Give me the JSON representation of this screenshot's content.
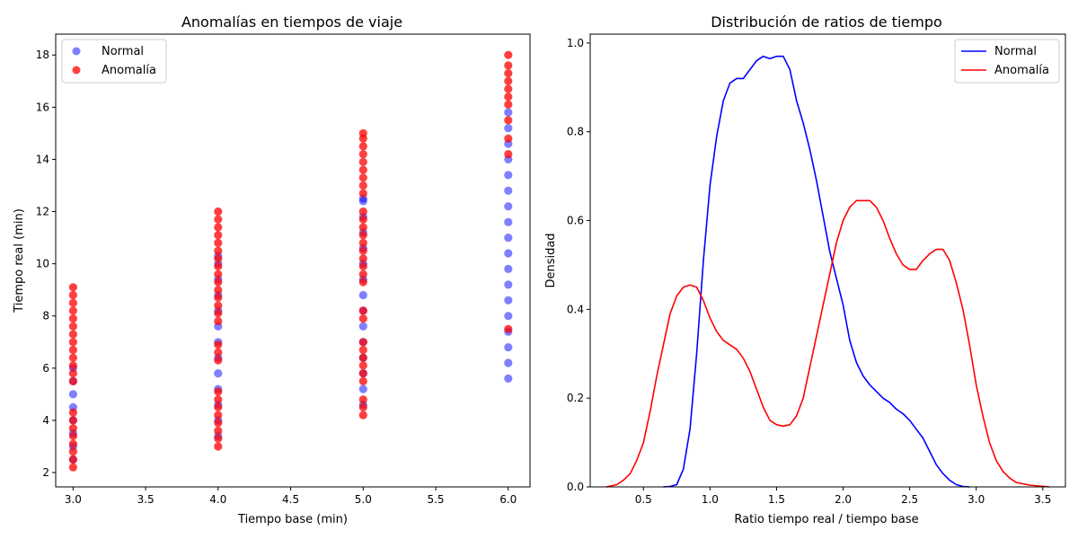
{
  "chart_data": [
    {
      "type": "scatter",
      "title": "Anomalías en tiempos de viaje",
      "xlabel": "Tiempo base (min)",
      "ylabel": "Tiempo real (min)",
      "xlim": [
        2.88,
        6.15
      ],
      "ylim": [
        1.45,
        18.8
      ],
      "xticks": [
        "3.0",
        "3.5",
        "4.0",
        "4.5",
        "5.0",
        "5.5",
        "6.0"
      ],
      "yticks": [
        "2",
        "4",
        "6",
        "8",
        "10",
        "12",
        "14",
        "16",
        "18"
      ],
      "grid": false,
      "legend_position": "top-left",
      "series": [
        {
          "name": "Normal",
          "color": "#0000ff",
          "alpha": 0.5,
          "points": [
            [
              3,
              2.5
            ],
            [
              3,
              3.0
            ],
            [
              3,
              3.5
            ],
            [
              3,
              4.0
            ],
            [
              3,
              4.5
            ],
            [
              3,
              5.0
            ],
            [
              3,
              5.5
            ],
            [
              3,
              6.0
            ],
            [
              4,
              3.4
            ],
            [
              4,
              4.0
            ],
            [
              4,
              4.6
            ],
            [
              4,
              5.2
            ],
            [
              4,
              5.8
            ],
            [
              4,
              6.4
            ],
            [
              4,
              7.0
            ],
            [
              4,
              7.6
            ],
            [
              4,
              8.2
            ],
            [
              4,
              8.8
            ],
            [
              4,
              9.4
            ],
            [
              4,
              10.0
            ],
            [
              4,
              10.3
            ],
            [
              5,
              4.6
            ],
            [
              5,
              5.2
            ],
            [
              5,
              5.8
            ],
            [
              5,
              6.4
            ],
            [
              5,
              7.0
            ],
            [
              5,
              7.6
            ],
            [
              5,
              8.2
            ],
            [
              5,
              8.8
            ],
            [
              5,
              9.4
            ],
            [
              5,
              10.0
            ],
            [
              5,
              10.6
            ],
            [
              5,
              11.2
            ],
            [
              5,
              11.8
            ],
            [
              5,
              12.4
            ],
            [
              5,
              12.5
            ],
            [
              6,
              5.6
            ],
            [
              6,
              6.2
            ],
            [
              6,
              6.8
            ],
            [
              6,
              7.4
            ],
            [
              6,
              8.0
            ],
            [
              6,
              8.6
            ],
            [
              6,
              9.2
            ],
            [
              6,
              9.8
            ],
            [
              6,
              10.4
            ],
            [
              6,
              11.0
            ],
            [
              6,
              11.6
            ],
            [
              6,
              12.2
            ],
            [
              6,
              12.8
            ],
            [
              6,
              13.4
            ],
            [
              6,
              14.0
            ],
            [
              6,
              14.6
            ],
            [
              6,
              15.2
            ],
            [
              6,
              15.8
            ]
          ]
        },
        {
          "name": "Anomalía",
          "color": "#ff0000",
          "alpha": 0.75,
          "points": [
            [
              3,
              2.2
            ],
            [
              3,
              2.5
            ],
            [
              3,
              2.8
            ],
            [
              3,
              3.1
            ],
            [
              3,
              3.4
            ],
            [
              3,
              3.7
            ],
            [
              3,
              4.0
            ],
            [
              3,
              4.3
            ],
            [
              3,
              5.5
            ],
            [
              3,
              5.8
            ],
            [
              3,
              6.1
            ],
            [
              3,
              6.4
            ],
            [
              3,
              6.7
            ],
            [
              3,
              7.0
            ],
            [
              3,
              7.3
            ],
            [
              3,
              7.6
            ],
            [
              3,
              7.9
            ],
            [
              3,
              8.2
            ],
            [
              3,
              8.5
            ],
            [
              3,
              8.8
            ],
            [
              3,
              9.1
            ],
            [
              4,
              3.0
            ],
            [
              4,
              3.3
            ],
            [
              4,
              3.6
            ],
            [
              4,
              3.9
            ],
            [
              4,
              4.2
            ],
            [
              4,
              4.5
            ],
            [
              4,
              4.8
            ],
            [
              4,
              5.1
            ],
            [
              4,
              6.3
            ],
            [
              4,
              6.6
            ],
            [
              4,
              6.9
            ],
            [
              4,
              7.8
            ],
            [
              4,
              8.1
            ],
            [
              4,
              8.4
            ],
            [
              4,
              8.7
            ],
            [
              4,
              9.0
            ],
            [
              4,
              9.3
            ],
            [
              4,
              9.6
            ],
            [
              4,
              9.9
            ],
            [
              4,
              10.2
            ],
            [
              4,
              10.5
            ],
            [
              4,
              10.8
            ],
            [
              4,
              11.1
            ],
            [
              4,
              11.4
            ],
            [
              4,
              11.7
            ],
            [
              4,
              12.0
            ],
            [
              5,
              4.2
            ],
            [
              5,
              4.5
            ],
            [
              5,
              4.8
            ],
            [
              5,
              5.5
            ],
            [
              5,
              5.8
            ],
            [
              5,
              6.1
            ],
            [
              5,
              6.4
            ],
            [
              5,
              6.7
            ],
            [
              5,
              7.0
            ],
            [
              5,
              7.9
            ],
            [
              5,
              8.2
            ],
            [
              5,
              9.3
            ],
            [
              5,
              9.6
            ],
            [
              5,
              9.9
            ],
            [
              5,
              10.2
            ],
            [
              5,
              10.5
            ],
            [
              5,
              10.8
            ],
            [
              5,
              11.1
            ],
            [
              5,
              11.4
            ],
            [
              5,
              11.7
            ],
            [
              5,
              12.0
            ],
            [
              5,
              12.7
            ],
            [
              5,
              13.0
            ],
            [
              5,
              13.3
            ],
            [
              5,
              13.6
            ],
            [
              5,
              13.9
            ],
            [
              5,
              14.2
            ],
            [
              5,
              14.5
            ],
            [
              5,
              14.8
            ],
            [
              5,
              15.0
            ],
            [
              6,
              7.5
            ],
            [
              6,
              14.2
            ],
            [
              6,
              14.8
            ],
            [
              6,
              15.5
            ],
            [
              6,
              16.1
            ],
            [
              6,
              16.4
            ],
            [
              6,
              16.7
            ],
            [
              6,
              17.0
            ],
            [
              6,
              17.3
            ],
            [
              6,
              17.6
            ],
            [
              6,
              18.0
            ]
          ]
        }
      ]
    },
    {
      "type": "line",
      "title": "Distribución de ratios de tiempo",
      "xlabel": "Ratio tiempo real / tiempo base",
      "ylabel": "Densidad",
      "xlim": [
        0.1,
        3.67
      ],
      "ylim": [
        0.0,
        1.02
      ],
      "xticks": [
        "0.5",
        "1.0",
        "1.5",
        "2.0",
        "2.5",
        "3.0",
        "3.5"
      ],
      "yticks": [
        "0.0",
        "0.2",
        "0.4",
        "0.6",
        "0.8",
        "1.0"
      ],
      "grid": false,
      "legend_position": "top-right",
      "series": [
        {
          "name": "Normal",
          "color": "#0000ff",
          "points": [
            [
              0.65,
              0.0
            ],
            [
              0.7,
              0.001
            ],
            [
              0.75,
              0.005
            ],
            [
              0.8,
              0.04
            ],
            [
              0.85,
              0.13
            ],
            [
              0.9,
              0.3
            ],
            [
              0.95,
              0.51
            ],
            [
              1.0,
              0.68
            ],
            [
              1.05,
              0.79
            ],
            [
              1.1,
              0.87
            ],
            [
              1.15,
              0.91
            ],
            [
              1.2,
              0.92
            ],
            [
              1.25,
              0.92
            ],
            [
              1.3,
              0.94
            ],
            [
              1.35,
              0.96
            ],
            [
              1.4,
              0.97
            ],
            [
              1.45,
              0.965
            ],
            [
              1.5,
              0.97
            ],
            [
              1.55,
              0.97
            ],
            [
              1.6,
              0.94
            ],
            [
              1.65,
              0.87
            ],
            [
              1.7,
              0.82
            ],
            [
              1.75,
              0.76
            ],
            [
              1.8,
              0.69
            ],
            [
              1.85,
              0.61
            ],
            [
              1.9,
              0.53
            ],
            [
              1.95,
              0.47
            ],
            [
              2.0,
              0.41
            ],
            [
              2.05,
              0.33
            ],
            [
              2.1,
              0.28
            ],
            [
              2.15,
              0.25
            ],
            [
              2.2,
              0.23
            ],
            [
              2.25,
              0.215
            ],
            [
              2.3,
              0.2
            ],
            [
              2.35,
              0.19
            ],
            [
              2.4,
              0.175
            ],
            [
              2.45,
              0.165
            ],
            [
              2.5,
              0.15
            ],
            [
              2.55,
              0.13
            ],
            [
              2.6,
              0.11
            ],
            [
              2.65,
              0.08
            ],
            [
              2.7,
              0.05
            ],
            [
              2.75,
              0.03
            ],
            [
              2.8,
              0.015
            ],
            [
              2.85,
              0.005
            ],
            [
              2.9,
              0.001
            ],
            [
              2.95,
              0.0
            ]
          ]
        },
        {
          "name": "Anomalía",
          "color": "#ff0000",
          "points": [
            [
              0.22,
              0.0
            ],
            [
              0.3,
              0.005
            ],
            [
              0.35,
              0.015
            ],
            [
              0.4,
              0.03
            ],
            [
              0.45,
              0.06
            ],
            [
              0.5,
              0.1
            ],
            [
              0.55,
              0.17
            ],
            [
              0.6,
              0.25
            ],
            [
              0.65,
              0.32
            ],
            [
              0.7,
              0.39
            ],
            [
              0.75,
              0.43
            ],
            [
              0.8,
              0.45
            ],
            [
              0.85,
              0.455
            ],
            [
              0.9,
              0.45
            ],
            [
              0.95,
              0.42
            ],
            [
              1.0,
              0.38
            ],
            [
              1.05,
              0.35
            ],
            [
              1.1,
              0.33
            ],
            [
              1.15,
              0.32
            ],
            [
              1.2,
              0.31
            ],
            [
              1.25,
              0.29
            ],
            [
              1.3,
              0.26
            ],
            [
              1.35,
              0.22
            ],
            [
              1.4,
              0.18
            ],
            [
              1.45,
              0.15
            ],
            [
              1.5,
              0.14
            ],
            [
              1.55,
              0.137
            ],
            [
              1.6,
              0.14
            ],
            [
              1.65,
              0.16
            ],
            [
              1.7,
              0.2
            ],
            [
              1.75,
              0.27
            ],
            [
              1.8,
              0.34
            ],
            [
              1.85,
              0.41
            ],
            [
              1.9,
              0.48
            ],
            [
              1.95,
              0.55
            ],
            [
              2.0,
              0.6
            ],
            [
              2.05,
              0.63
            ],
            [
              2.1,
              0.645
            ],
            [
              2.15,
              0.645
            ],
            [
              2.2,
              0.645
            ],
            [
              2.25,
              0.63
            ],
            [
              2.3,
              0.6
            ],
            [
              2.35,
              0.56
            ],
            [
              2.4,
              0.525
            ],
            [
              2.45,
              0.5
            ],
            [
              2.5,
              0.49
            ],
            [
              2.55,
              0.49
            ],
            [
              2.6,
              0.51
            ],
            [
              2.65,
              0.525
            ],
            [
              2.7,
              0.535
            ],
            [
              2.75,
              0.535
            ],
            [
              2.8,
              0.51
            ],
            [
              2.85,
              0.46
            ],
            [
              2.9,
              0.4
            ],
            [
              2.95,
              0.32
            ],
            [
              3.0,
              0.23
            ],
            [
              3.05,
              0.16
            ],
            [
              3.1,
              0.1
            ],
            [
              3.15,
              0.06
            ],
            [
              3.2,
              0.035
            ],
            [
              3.25,
              0.02
            ],
            [
              3.3,
              0.01
            ],
            [
              3.4,
              0.004
            ],
            [
              3.55,
              0.0
            ]
          ]
        }
      ]
    }
  ]
}
